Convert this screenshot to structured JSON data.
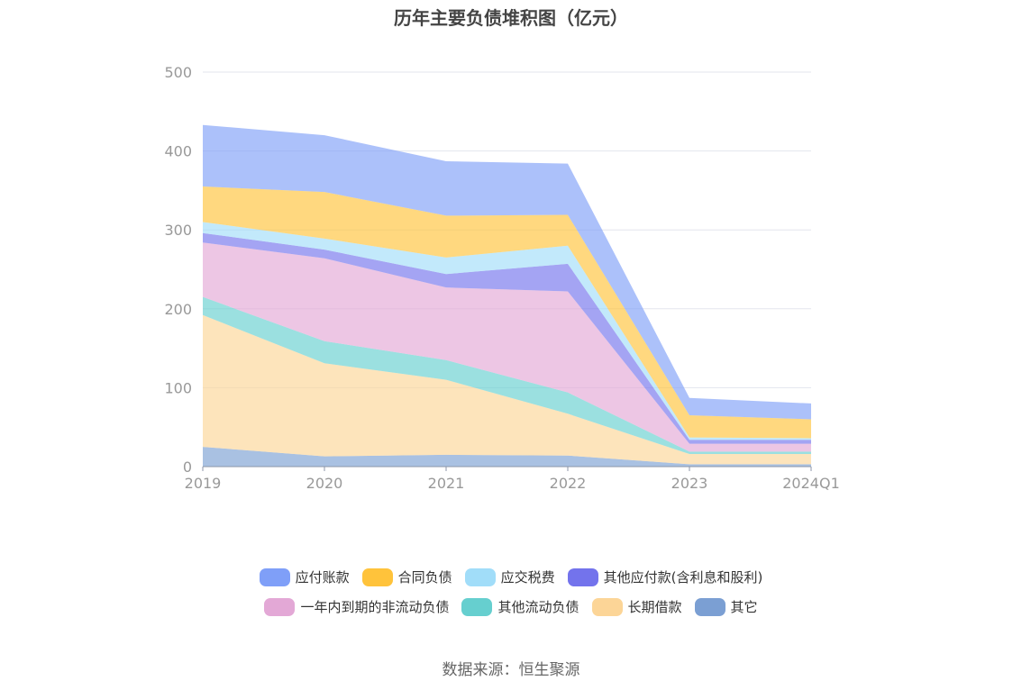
{
  "title": "历年主要负债堆积图（亿元）",
  "source": "数据来源：恒生聚源",
  "chart_data": {
    "type": "area",
    "stacked": true,
    "title": "历年主要负债堆积图（亿元）",
    "categories": [
      "2019",
      "2020",
      "2021",
      "2022",
      "2023",
      "2024Q1"
    ],
    "ylim": [
      0,
      500
    ],
    "yticks": [
      0,
      100,
      200,
      300,
      400,
      500
    ],
    "grid": true,
    "legend_position": "bottom",
    "series": [
      {
        "name": "其它",
        "color": "#7b9fd3",
        "values": [
          25,
          13,
          15,
          14,
          3,
          3
        ]
      },
      {
        "name": "长期借款",
        "color": "#fcd597",
        "values": [
          167,
          118,
          95,
          53,
          13,
          13
        ]
      },
      {
        "name": "其他流动负债",
        "color": "#66cfcf",
        "values": [
          23,
          28,
          25,
          27,
          3,
          3
        ]
      },
      {
        "name": "一年内到期的非流动负债",
        "color": "#e3a8d6",
        "values": [
          69,
          105,
          92,
          128,
          10,
          10
        ]
      },
      {
        "name": "其他应付款(含利息和股利)",
        "color": "#7373ec",
        "values": [
          12,
          11,
          17,
          35,
          5,
          5
        ]
      },
      {
        "name": "应交税费",
        "color": "#a1ddf9",
        "values": [
          14,
          14,
          21,
          23,
          3,
          2
        ]
      },
      {
        "name": "合同负债",
        "color": "#ffc33b",
        "values": [
          45,
          59,
          53,
          39,
          28,
          24
        ]
      },
      {
        "name": "应付账款",
        "color": "#7f9ff8",
        "values": [
          78,
          72,
          69,
          65,
          22,
          20
        ]
      }
    ]
  },
  "legend": {
    "row1": [
      {
        "name": "应付账款",
        "color": "#7f9ff8"
      },
      {
        "name": "合同负债",
        "color": "#ffc33b"
      },
      {
        "name": "应交税费",
        "color": "#a1ddf9"
      },
      {
        "name": "其他应付款(含利息和股利)",
        "color": "#7373ec"
      }
    ],
    "row2": [
      {
        "name": "一年内到期的非流动负债",
        "color": "#e3a8d6"
      },
      {
        "name": "其他流动负债",
        "color": "#66cfcf"
      },
      {
        "name": "长期借款",
        "color": "#fcd597"
      },
      {
        "name": "其它",
        "color": "#7b9fd3"
      }
    ]
  }
}
